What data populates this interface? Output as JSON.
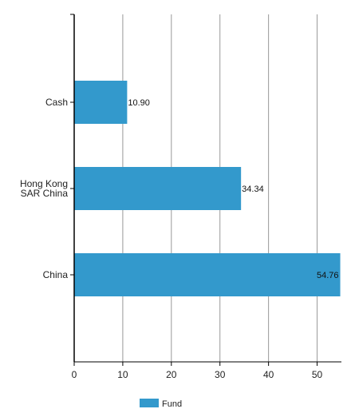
{
  "chart_data": {
    "type": "bar",
    "orientation": "horizontal",
    "title": "",
    "xlabel": "",
    "ylabel": "",
    "categories": [
      "Cash",
      "Hong Kong SAR China",
      "China"
    ],
    "series": [
      {
        "name": "Fund",
        "values": [
          10.9,
          34.34,
          54.76
        ],
        "value_labels": [
          "10.90",
          "34.34",
          "54.76"
        ]
      }
    ],
    "xlim": [
      0,
      55
    ],
    "xticks": [
      0,
      10,
      20,
      30,
      40,
      50
    ],
    "grid": true,
    "legend_position": "bottom",
    "colors": {
      "bar": "#3399cc",
      "grid": "#999999",
      "axis": "#000000"
    }
  }
}
